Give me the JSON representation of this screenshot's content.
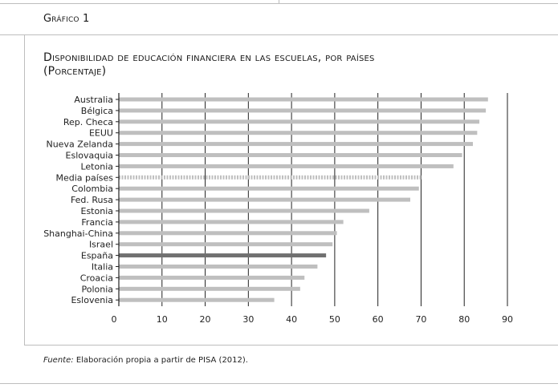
{
  "header": {
    "figure_label": "Gráfico 1",
    "title_line1": "Disponibilidad de educación financiera en las escuelas, por países",
    "title_line2": "(Porcentaje)"
  },
  "footer": {
    "source_label": "Fuente:",
    "source_text": "Elaboración propia a partir de PISA (2012)."
  },
  "colors": {
    "bar": "#bfbfbf",
    "highlight": "#707070",
    "average": "#bfbfbf",
    "gridline": "#222222"
  },
  "chart_data": {
    "type": "bar",
    "orientation": "horizontal",
    "categories": [
      "Australia",
      "Bélgica",
      "Rep. Checa",
      "EEUU",
      "Nueva Zelanda",
      "Eslovaquia",
      "Letonia",
      "Media países",
      "Colombia",
      "Fed. Rusa",
      "Estonia",
      "Francia",
      "Shanghai-China",
      "Israel",
      "España",
      "Italia",
      "Croacia",
      "Polonia",
      "Eslovenia"
    ],
    "values": [
      85.5,
      85,
      83.5,
      83,
      82,
      79.5,
      77.5,
      70,
      69.5,
      67.5,
      58,
      52,
      50.5,
      49.5,
      48,
      46,
      43,
      42,
      36
    ],
    "highlight": "España",
    "average": "Media países",
    "xlim": [
      0,
      90
    ],
    "xticks": [
      0,
      10,
      20,
      30,
      40,
      50,
      60,
      70,
      80,
      90
    ],
    "grid": true
  }
}
